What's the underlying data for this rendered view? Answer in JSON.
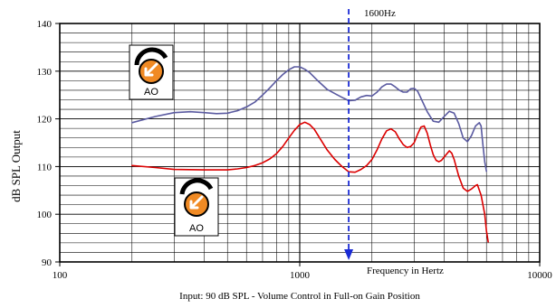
{
  "chart_data": {
    "type": "line",
    "title": "",
    "xlabel": "Frequency in Hertz",
    "ylabel": "dB SPL Output",
    "caption": "Input: 90 dB SPL - Volume Control in Full-on Gain Position",
    "x_scale": "log",
    "xlim": [
      100,
      10000
    ],
    "ylim": [
      90,
      140
    ],
    "x_ticks": [
      100,
      1000,
      10000
    ],
    "x_tick_labels": [
      "100",
      "1000",
      "10000"
    ],
    "y_ticks": [
      90,
      100,
      110,
      120,
      130,
      140
    ],
    "y_tick_labels": [
      "90",
      "100",
      "110",
      "120",
      "130",
      "140"
    ],
    "grid": true,
    "marker_line": {
      "x": 1600,
      "label": "1600Hz",
      "color": "#1a2bd6"
    },
    "badge_label": "AO",
    "series": [
      {
        "color": "#5a5aa0",
        "points": [
          [
            200,
            119.2
          ],
          [
            250,
            120.5
          ],
          [
            300,
            121.3
          ],
          [
            350,
            121.5
          ],
          [
            400,
            121.3
          ],
          [
            450,
            121.1
          ],
          [
            500,
            121.2
          ],
          [
            550,
            121.7
          ],
          [
            600,
            122.5
          ],
          [
            650,
            123.5
          ],
          [
            700,
            125.0
          ],
          [
            750,
            126.5
          ],
          [
            800,
            128.0
          ],
          [
            850,
            129.3
          ],
          [
            900,
            130.3
          ],
          [
            950,
            130.9
          ],
          [
            1000,
            130.9
          ],
          [
            1050,
            130.4
          ],
          [
            1100,
            129.7
          ],
          [
            1200,
            127.8
          ],
          [
            1300,
            126.2
          ],
          [
            1400,
            125.3
          ],
          [
            1500,
            124.5
          ],
          [
            1600,
            123.8
          ],
          [
            1700,
            123.9
          ],
          [
            1800,
            124.6
          ],
          [
            1900,
            124.9
          ],
          [
            2000,
            124.8
          ],
          [
            2100,
            125.6
          ],
          [
            2200,
            126.7
          ],
          [
            2300,
            127.3
          ],
          [
            2400,
            127.3
          ],
          [
            2500,
            126.7
          ],
          [
            2600,
            126.0
          ],
          [
            2700,
            125.6
          ],
          [
            2800,
            125.6
          ],
          [
            2900,
            126.3
          ],
          [
            3000,
            126.4
          ],
          [
            3100,
            125.8
          ],
          [
            3200,
            124.3
          ],
          [
            3400,
            121.5
          ],
          [
            3600,
            119.5
          ],
          [
            3800,
            119.3
          ],
          [
            4000,
            120.5
          ],
          [
            4200,
            121.6
          ],
          [
            4400,
            121.2
          ],
          [
            4600,
            119.0
          ],
          [
            4800,
            116.0
          ],
          [
            5000,
            115.2
          ],
          [
            5200,
            116.5
          ],
          [
            5400,
            118.5
          ],
          [
            5600,
            119.2
          ],
          [
            5700,
            118.5
          ],
          [
            5800,
            114.5
          ],
          [
            5900,
            111.0
          ],
          [
            6000,
            109.0
          ]
        ]
      },
      {
        "color": "#dc0000",
        "points": [
          [
            200,
            110.2
          ],
          [
            250,
            109.8
          ],
          [
            300,
            109.4
          ],
          [
            400,
            109.3
          ],
          [
            500,
            109.3
          ],
          [
            550,
            109.5
          ],
          [
            600,
            109.8
          ],
          [
            650,
            110.2
          ],
          [
            700,
            110.8
          ],
          [
            750,
            111.6
          ],
          [
            800,
            112.7
          ],
          [
            850,
            114.2
          ],
          [
            900,
            116.0
          ],
          [
            950,
            117.6
          ],
          [
            1000,
            118.8
          ],
          [
            1050,
            119.3
          ],
          [
            1100,
            118.8
          ],
          [
            1150,
            117.8
          ],
          [
            1200,
            116.3
          ],
          [
            1300,
            113.5
          ],
          [
            1400,
            111.5
          ],
          [
            1500,
            110.0
          ],
          [
            1600,
            108.9
          ],
          [
            1700,
            108.8
          ],
          [
            1800,
            109.4
          ],
          [
            1900,
            110.2
          ],
          [
            2000,
            111.5
          ],
          [
            2100,
            113.5
          ],
          [
            2200,
            115.8
          ],
          [
            2300,
            117.5
          ],
          [
            2400,
            117.9
          ],
          [
            2500,
            117.3
          ],
          [
            2600,
            115.8
          ],
          [
            2700,
            114.6
          ],
          [
            2800,
            114.0
          ],
          [
            2900,
            114.2
          ],
          [
            3000,
            115.0
          ],
          [
            3100,
            116.8
          ],
          [
            3200,
            118.3
          ],
          [
            3300,
            118.5
          ],
          [
            3400,
            117.0
          ],
          [
            3500,
            114.5
          ],
          [
            3600,
            112.5
          ],
          [
            3700,
            111.3
          ],
          [
            3800,
            111.0
          ],
          [
            3900,
            111.3
          ],
          [
            4000,
            112.0
          ],
          [
            4200,
            113.3
          ],
          [
            4300,
            112.8
          ],
          [
            4400,
            111.5
          ],
          [
            4600,
            108.0
          ],
          [
            4800,
            105.5
          ],
          [
            5000,
            104.8
          ],
          [
            5200,
            105.3
          ],
          [
            5400,
            106.0
          ],
          [
            5500,
            106.2
          ],
          [
            5700,
            104.0
          ],
          [
            5900,
            100.0
          ],
          [
            6000,
            96.5
          ],
          [
            6100,
            94.2
          ]
        ]
      }
    ]
  }
}
